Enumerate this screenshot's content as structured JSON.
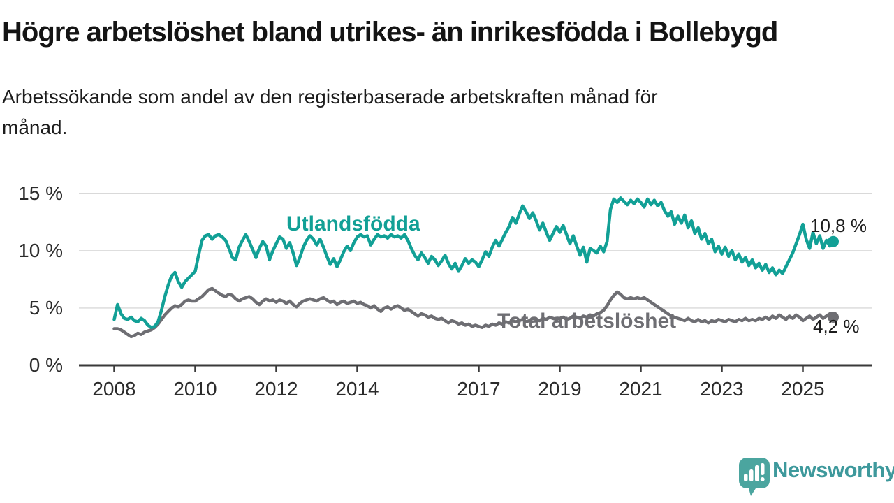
{
  "chart_data": {
    "type": "line",
    "title": "Högre arbetslöshet bland utrikes- än inrikesfödda i Bollebygd",
    "subtitle_lines": [
      "Arbetssökande som andel av den registerbaserade arbetskraften månad för",
      "månad."
    ],
    "frequency": "monthly",
    "x_start": "2008-01",
    "x_end": "2025-10",
    "ylim": [
      0,
      15
    ],
    "grid": "horizontal",
    "grid_color": "#d9d9d9",
    "axis_color": "#3a3a3a",
    "y_ticks": [
      {
        "value": 0,
        "label": "0 %"
      },
      {
        "value": 5,
        "label": "5 %"
      },
      {
        "value": 10,
        "label": "10 %"
      },
      {
        "value": 15,
        "label": "15 %"
      }
    ],
    "x_ticks": [
      {
        "year": 2008,
        "label": "2008"
      },
      {
        "year": 2010,
        "label": "2010"
      },
      {
        "year": 2012,
        "label": "2012"
      },
      {
        "year": 2014,
        "label": "2014"
      },
      {
        "year": 2017,
        "label": "2017"
      },
      {
        "year": 2019,
        "label": "2019"
      },
      {
        "year": 2021,
        "label": "2021"
      },
      {
        "year": 2023,
        "label": "2023"
      },
      {
        "year": 2025,
        "label": "2025"
      }
    ],
    "series": [
      {
        "name": "Utlandsfödda",
        "color": "#12a096",
        "end_label": "10,8 %",
        "last_value": 10.8,
        "values": [
          4.0,
          5.3,
          4.5,
          4.1,
          4.0,
          4.2,
          3.9,
          3.8,
          4.1,
          3.9,
          3.5,
          3.3,
          3.4,
          3.8,
          4.8,
          6.0,
          7.0,
          7.8,
          8.1,
          7.3,
          6.8,
          7.3,
          7.6,
          7.9,
          8.2,
          9.6,
          10.9,
          11.3,
          11.4,
          11.0,
          11.3,
          11.4,
          11.2,
          10.9,
          10.2,
          9.4,
          9.2,
          10.3,
          10.9,
          11.4,
          10.8,
          10.1,
          9.4,
          10.2,
          10.8,
          10.4,
          9.2,
          10.0,
          10.6,
          11.2,
          11.0,
          10.2,
          10.7,
          9.8,
          8.7,
          9.4,
          10.3,
          10.9,
          11.3,
          11.0,
          10.5,
          11.0,
          10.3,
          9.5,
          8.8,
          9.3,
          8.6,
          9.2,
          9.9,
          10.4,
          10.0,
          10.7,
          11.2,
          11.4,
          11.2,
          11.3,
          10.5,
          11.0,
          11.4,
          11.2,
          11.3,
          11.1,
          11.4,
          11.2,
          11.3,
          11.1,
          11.4,
          10.9,
          10.2,
          9.6,
          9.2,
          9.8,
          9.4,
          8.9,
          9.5,
          9.2,
          8.7,
          9.1,
          9.6,
          8.9,
          8.4,
          8.9,
          8.2,
          8.7,
          9.3,
          8.9,
          9.2,
          9.0,
          8.6,
          9.2,
          9.9,
          9.5,
          10.3,
          10.9,
          10.4,
          11.0,
          11.6,
          12.1,
          12.9,
          12.4,
          13.2,
          13.9,
          13.4,
          12.8,
          13.3,
          12.6,
          11.8,
          12.4,
          11.6,
          10.9,
          11.5,
          12.1,
          11.6,
          12.2,
          11.4,
          10.6,
          11.3,
          10.4,
          9.6,
          10.3,
          9.0,
          10.2,
          10.0,
          9.8,
          10.4,
          9.9,
          10.8,
          13.6,
          14.5,
          14.2,
          14.6,
          14.3,
          14.0,
          14.4,
          14.1,
          14.5,
          14.2,
          13.8,
          14.5,
          14.0,
          14.4,
          13.9,
          14.2,
          13.5,
          13.0,
          13.4,
          12.3,
          13.0,
          12.4,
          13.1,
          12.0,
          12.6,
          11.5,
          12.0,
          11.0,
          11.5,
          10.6,
          11.0,
          9.9,
          10.4,
          9.7,
          10.3,
          9.5,
          10.0,
          9.2,
          9.7,
          9.0,
          9.4,
          8.7,
          9.2,
          8.5,
          8.9,
          8.3,
          8.8,
          8.1,
          8.5,
          7.9,
          8.3,
          8.0,
          8.6,
          9.2,
          9.8,
          10.6,
          11.4,
          12.3,
          11.0,
          10.2,
          11.6,
          10.6,
          11.3,
          10.2,
          10.9,
          10.4,
          10.8
        ]
      },
      {
        "name": "Total arbetslöshet",
        "color": "#6e6e73",
        "end_label": "4,2 %",
        "last_value": 4.2,
        "values": [
          3.2,
          3.2,
          3.1,
          2.9,
          2.7,
          2.5,
          2.6,
          2.8,
          2.7,
          2.9,
          3.0,
          3.1,
          3.3,
          3.6,
          4.0,
          4.4,
          4.7,
          5.0,
          5.2,
          5.1,
          5.3,
          5.6,
          5.7,
          5.6,
          5.6,
          5.8,
          6.0,
          6.3,
          6.6,
          6.7,
          6.5,
          6.3,
          6.1,
          6.0,
          6.2,
          6.1,
          5.8,
          5.6,
          5.8,
          5.9,
          6.0,
          5.8,
          5.5,
          5.3,
          5.6,
          5.8,
          5.6,
          5.7,
          5.5,
          5.7,
          5.6,
          5.4,
          5.6,
          5.3,
          5.1,
          5.4,
          5.6,
          5.7,
          5.8,
          5.7,
          5.6,
          5.8,
          5.9,
          5.7,
          5.5,
          5.6,
          5.3,
          5.5,
          5.6,
          5.4,
          5.5,
          5.6,
          5.4,
          5.5,
          5.3,
          5.2,
          5.0,
          5.2,
          4.9,
          4.7,
          5.0,
          5.1,
          4.9,
          5.1,
          5.2,
          5.0,
          4.8,
          4.9,
          4.7,
          4.5,
          4.3,
          4.5,
          4.4,
          4.2,
          4.3,
          4.1,
          4.0,
          4.1,
          3.9,
          3.7,
          3.9,
          3.8,
          3.6,
          3.7,
          3.5,
          3.6,
          3.4,
          3.5,
          3.4,
          3.3,
          3.5,
          3.4,
          3.6,
          3.5,
          3.7,
          3.6,
          3.8,
          3.7,
          3.9,
          3.8,
          3.9,
          4.0,
          3.8,
          3.9,
          4.1,
          4.0,
          3.9,
          4.1,
          4.0,
          4.2,
          4.1,
          4.0,
          4.1,
          4.2,
          4.0,
          4.1,
          4.3,
          4.2,
          4.1,
          4.3,
          4.2,
          4.4,
          4.3,
          4.5,
          4.6,
          4.8,
          5.2,
          5.7,
          6.1,
          6.4,
          6.2,
          5.9,
          5.8,
          5.9,
          5.8,
          5.9,
          5.8,
          5.9,
          5.7,
          5.5,
          5.3,
          5.1,
          4.9,
          4.7,
          4.5,
          4.3,
          4.2,
          4.1,
          4.0,
          3.9,
          4.1,
          3.9,
          3.8,
          4.0,
          3.8,
          3.9,
          3.7,
          3.9,
          3.8,
          4.0,
          3.9,
          3.8,
          4.0,
          3.9,
          3.8,
          4.0,
          3.9,
          4.1,
          3.9,
          4.0,
          3.9,
          4.1,
          4.0,
          4.2,
          4.0,
          4.3,
          4.1,
          4.4,
          4.2,
          4.0,
          4.3,
          4.1,
          4.4,
          4.2,
          3.9,
          4.1,
          4.3,
          4.0,
          4.2,
          4.4,
          4.1,
          4.3,
          4.5,
          4.2
        ]
      }
    ]
  },
  "footer": {
    "brand": "Newsworthy",
    "brand_color": "#3e999c",
    "logo_color": "#4ba59f"
  }
}
